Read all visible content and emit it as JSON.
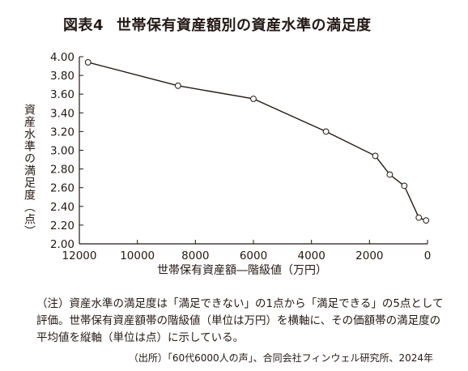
{
  "title": {
    "number": "図表4",
    "text": "世帯保有資産額別の資産水準の満足度"
  },
  "chart_data": {
    "type": "line",
    "title": "図表4　世帯保有資産額別の資産水準の満足度",
    "xlabel": "世帯保有資産額―階級値（万円）",
    "ylabel": "資産水準の満足度（点）",
    "x_reversed": true,
    "xlim": [
      12000,
      0
    ],
    "ylim": [
      2.0,
      4.0
    ],
    "grid": false,
    "x_ticks": [
      "12000",
      "10000",
      "8000",
      "6000",
      "4000",
      "2000",
      "0"
    ],
    "y_ticks": [
      "4.00",
      "3.80",
      "3.60",
      "3.40",
      "3.20",
      "3.00",
      "2.80",
      "2.60",
      "2.40",
      "2.20",
      "2.00"
    ],
    "series": [
      {
        "x": [
          11700,
          8600,
          6000,
          3500,
          1800,
          1300,
          800,
          300,
          50
        ],
        "y": [
          3.94,
          3.69,
          3.55,
          3.2,
          2.94,
          2.74,
          2.62,
          2.28,
          2.25
        ]
      }
    ]
  },
  "note": "（注）資産水準の満足度は「満足できない」の1点から「満足できる」の5点として評価。世帯保有資産額帯の階級値（単位は万円）を横軸に、その価額帯の満足度の平均値を縦軸（単位は点）に示している。",
  "source": "（出所）「60代6000人の声」、合同会社フィンウェル研究所、2024年",
  "colors": {
    "text": "#231815",
    "line": "#231815",
    "marker_fill": "#ffffff"
  }
}
